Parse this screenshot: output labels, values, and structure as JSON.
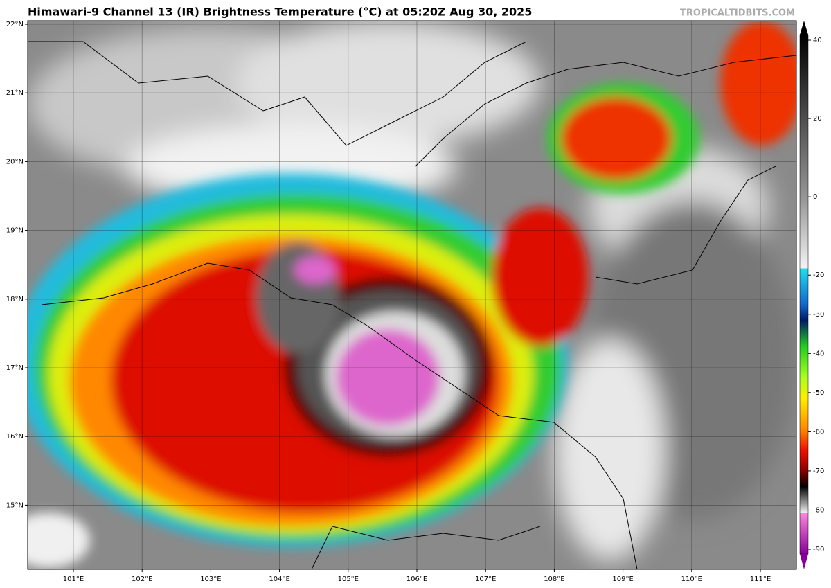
{
  "header": {
    "title": "Himawari-9 Channel 13 (IR) Brightness Temperature (°C) at 05:20Z Aug 30, 2025",
    "source": "TROPICALTIDBITS.COM"
  },
  "map": {
    "lat_labels": [
      {
        "value": 22,
        "label": "22°N"
      },
      {
        "value": 21,
        "label": "21°N"
      },
      {
        "value": 20,
        "label": "20°N"
      },
      {
        "value": 19,
        "label": "19°N"
      },
      {
        "value": 18,
        "label": "18°N"
      },
      {
        "value": 17,
        "label": "17°N"
      },
      {
        "value": 16,
        "label": "16°N"
      },
      {
        "value": 15,
        "label": "15°N"
      }
    ],
    "lon_labels": [
      {
        "value": 101,
        "label": "101°E"
      },
      {
        "value": 102,
        "label": "102°E"
      },
      {
        "value": 103,
        "label": "103°E"
      },
      {
        "value": 104,
        "label": "104°E"
      },
      {
        "value": 105,
        "label": "105°E"
      },
      {
        "value": 106,
        "label": "106°E"
      },
      {
        "value": 107,
        "label": "107°E"
      },
      {
        "value": 108,
        "label": "108°E"
      },
      {
        "value": 109,
        "label": "109°E"
      },
      {
        "value": 110,
        "label": "110°E"
      },
      {
        "value": 111,
        "label": "111°E"
      }
    ]
  },
  "colorbar": {
    "ticks": [
      40,
      20,
      0,
      -20,
      -30,
      -40,
      -50,
      -60,
      -70,
      -80,
      -90
    ]
  }
}
